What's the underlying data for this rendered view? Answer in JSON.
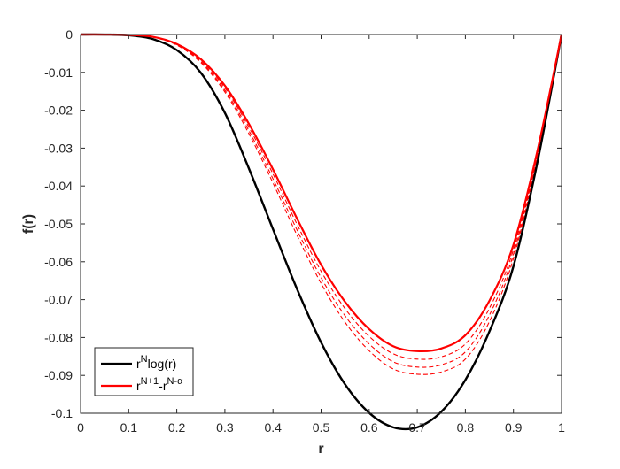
{
  "chart_data": {
    "type": "line",
    "title": "",
    "xlabel": "r",
    "ylabel": "f(r)",
    "xlim": [
      0,
      1
    ],
    "ylim": [
      -0.1,
      0
    ],
    "x_ticks": [
      "0",
      "0.1",
      "0.2",
      "0.3",
      "0.4",
      "0.5",
      "0.6",
      "0.7",
      "0.8",
      "0.9",
      "1"
    ],
    "y_ticks": [
      "0",
      "-0.01",
      "-0.02",
      "-0.03",
      "-0.04",
      "-0.05",
      "-0.06",
      "-0.07",
      "-0.08",
      "-0.09",
      "-0.1"
    ],
    "grid": false,
    "legend_position": "bottom-left",
    "legend": [
      {
        "base": "r",
        "sup": "N",
        "tail": "log(r)",
        "sub_tail": "",
        "color": "#000000"
      },
      {
        "base": "r",
        "sup": "N+1",
        "tail": "-r",
        "sup_tail": "N-α",
        "color": "#ff0000"
      }
    ],
    "x": [
      0,
      0.05,
      0.1,
      0.15,
      0.2,
      0.25,
      0.3,
      0.35,
      0.4,
      0.45,
      0.5,
      0.55,
      0.6,
      0.65,
      0.7,
      0.75,
      0.8,
      0.85,
      0.9,
      0.95,
      1
    ],
    "series": [
      {
        "color": "#000000",
        "style": "solid",
        "width": 2.4,
        "values": [
          0,
          -1e-05,
          -0.0002,
          -0.0012,
          -0.0041,
          -0.0101,
          -0.0207,
          -0.0354,
          -0.0514,
          -0.0672,
          -0.0813,
          -0.0924,
          -0.0999,
          -0.1037,
          -0.1037,
          -0.0996,
          -0.0912,
          -0.0784,
          -0.0612,
          -0.0336,
          0
        ]
      },
      {
        "color": "#ff0000",
        "style": "solid",
        "width": 2.2,
        "values": [
          0,
          -1e-05,
          -0.0001,
          -0.0006,
          -0.0025,
          -0.0065,
          -0.0135,
          -0.0236,
          -0.0356,
          -0.0486,
          -0.0608,
          -0.0706,
          -0.0778,
          -0.0823,
          -0.0836,
          -0.0829,
          -0.0794,
          -0.0703,
          -0.0555,
          -0.0306,
          0
        ]
      },
      {
        "color": "#ff0000",
        "style": "dashed",
        "width": 1.1,
        "values": [
          0,
          -1e-05,
          -0.0001,
          -0.0007,
          -0.0026,
          -0.0068,
          -0.0141,
          -0.0245,
          -0.0368,
          -0.0501,
          -0.0625,
          -0.0724,
          -0.0797,
          -0.0843,
          -0.0857,
          -0.0851,
          -0.0817,
          -0.0723,
          -0.0568,
          -0.0312,
          0
        ]
      },
      {
        "color": "#ff0000",
        "style": "dashed",
        "width": 1.1,
        "values": [
          0,
          -1e-05,
          -0.0001,
          -0.0007,
          -0.0027,
          -0.0071,
          -0.0147,
          -0.0254,
          -0.0381,
          -0.0516,
          -0.0642,
          -0.0743,
          -0.0817,
          -0.0864,
          -0.0878,
          -0.0872,
          -0.0838,
          -0.0741,
          -0.058,
          -0.0317,
          0
        ]
      },
      {
        "color": "#ff0000",
        "style": "dashed",
        "width": 1.1,
        "values": [
          0,
          -1e-05,
          -0.0001,
          -0.0007,
          -0.0028,
          -0.0074,
          -0.0152,
          -0.0262,
          -0.0392,
          -0.053,
          -0.0657,
          -0.076,
          -0.0835,
          -0.0883,
          -0.0897,
          -0.0891,
          -0.0857,
          -0.0758,
          -0.0591,
          -0.0322,
          0
        ]
      }
    ]
  }
}
